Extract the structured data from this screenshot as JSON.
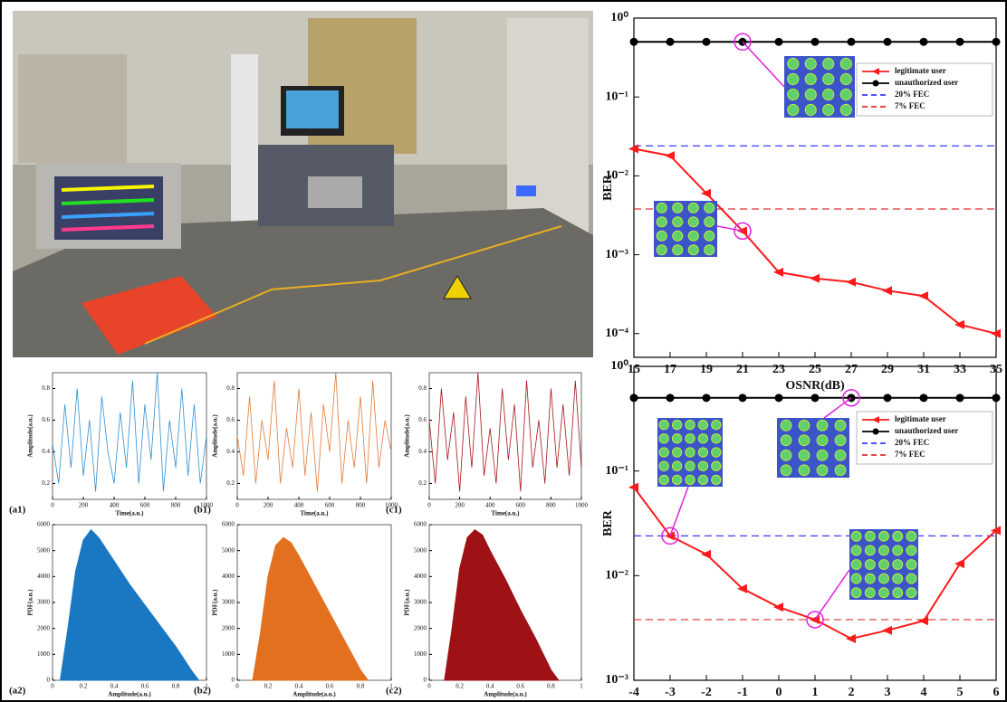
{
  "chart_data": [
    {
      "type": "line",
      "log_scale": true,
      "x_label": "OSNR(dB)",
      "y_label": "BER",
      "legend": "upper right",
      "x": [
        15,
        17,
        19,
        21,
        23,
        25,
        27,
        29,
        31,
        33,
        35
      ],
      "xlim": [
        15,
        35
      ],
      "xticks": [
        15,
        17,
        19,
        21,
        23,
        25,
        27,
        29,
        31,
        33,
        35
      ],
      "ylim": [
        5e-05,
        1
      ],
      "yticks": [
        {
          "value": 1,
          "label": "10⁰"
        },
        {
          "value": 0.1,
          "label": "10⁻¹"
        },
        {
          "value": 0.01,
          "label": "10⁻²"
        },
        {
          "value": 0.001,
          "label": "10⁻³"
        },
        {
          "value": 0.0001,
          "label": "10⁻⁴"
        }
      ],
      "series": [
        {
          "name": "legitimate user",
          "color": "#ff1a1a",
          "marker": "triangle",
          "values": [
            0.022,
            0.018,
            0.006,
            0.002,
            0.0006,
            0.0005,
            0.00045,
            0.00035,
            0.0003,
            0.00013,
            0.0001
          ]
        },
        {
          "name": "unauthorized user",
          "color": "#000000",
          "marker": "circle",
          "values": [
            0.5,
            0.5,
            0.5,
            0.5,
            0.5,
            0.5,
            0.5,
            0.5,
            0.5,
            0.5,
            0.5
          ]
        }
      ],
      "hlines": [
        {
          "name": "20% FEC",
          "color": "#3a3aff",
          "value": 0.024
        },
        {
          "name": "7% FEC",
          "color": "#e03030",
          "value": 0.0038
        }
      ]
    },
    {
      "type": "line",
      "log_scale": true,
      "x_label": "Launching power(dBm)",
      "y_label": "BER",
      "legend": "upper right",
      "x": [
        -4,
        -3,
        -2,
        -1,
        0,
        1,
        2,
        3,
        4,
        5,
        6
      ],
      "xlim": [
        -4,
        6
      ],
      "xticks": [
        -4,
        -3,
        -2,
        -1,
        0,
        1,
        2,
        3,
        4,
        5,
        6
      ],
      "ylim": [
        0.001,
        1
      ],
      "yticks": [
        {
          "value": 1,
          "label": "10⁰"
        },
        {
          "value": 0.1,
          "label": "10⁻¹"
        },
        {
          "value": 0.01,
          "label": "10⁻²"
        },
        {
          "value": 0.001,
          "label": "10⁻³"
        }
      ],
      "series": [
        {
          "name": "legitimate user",
          "color": "#ff1a1a",
          "marker": "triangle",
          "values": [
            0.07,
            0.024,
            0.016,
            0.0075,
            0.005,
            0.0038,
            0.0025,
            0.003,
            0.0037,
            0.013,
            0.027
          ]
        },
        {
          "name": "unauthorized user",
          "color": "#000000",
          "marker": "circle",
          "values": [
            0.5,
            0.5,
            0.5,
            0.5,
            0.5,
            0.5,
            0.5,
            0.5,
            0.5,
            0.5,
            0.5
          ]
        }
      ],
      "hlines": [
        {
          "name": "20% FEC",
          "color": "#3a3aff",
          "value": 0.024
        },
        {
          "name": "7% FEC",
          "color": "#e03030",
          "value": 0.0038
        }
      ]
    },
    {
      "type": "line",
      "panel_label": "(a1)",
      "x_label": "Time(a.u.)",
      "y_label": "Amplitude(a.u.)",
      "x": [
        0,
        40,
        80,
        120,
        160,
        200,
        240,
        280,
        320,
        360,
        400,
        440,
        480,
        520,
        560,
        600,
        640,
        680,
        720,
        760,
        800,
        840,
        880,
        920,
        960,
        1000
      ],
      "xlim": [
        0,
        1000
      ],
      "xticks": [
        0,
        200,
        400,
        600,
        800,
        1000
      ],
      "ylim": [
        0.1,
        0.9
      ],
      "yticks": [
        0.2,
        0.4,
        0.6,
        0.8
      ],
      "series": [
        {
          "name": null,
          "color": "#2f8fcf",
          "values": [
            0.45,
            0.2,
            0.7,
            0.3,
            0.8,
            0.25,
            0.6,
            0.15,
            0.75,
            0.4,
            0.2,
            0.65,
            0.3,
            0.85,
            0.2,
            0.7,
            0.35,
            0.9,
            0.15,
            0.6,
            0.3,
            0.8,
            0.25,
            0.7,
            0.2,
            0.5
          ]
        }
      ]
    },
    {
      "type": "line",
      "panel_label": "(b1)",
      "x_label": "Time(a.u.)",
      "y_label": "Amplitude(a.u.)",
      "x": [
        0,
        40,
        80,
        120,
        160,
        200,
        240,
        280,
        320,
        360,
        400,
        440,
        480,
        520,
        560,
        600,
        640,
        680,
        720,
        760,
        800,
        840,
        880,
        920,
        960,
        1000
      ],
      "xlim": [
        0,
        1000
      ],
      "xticks": [
        0,
        200,
        400,
        600,
        800,
        1000
      ],
      "ylim": [
        0.1,
        0.9
      ],
      "yticks": [
        0.2,
        0.4,
        0.6,
        0.8
      ],
      "series": [
        {
          "name": null,
          "color": "#e07b3a",
          "values": [
            0.5,
            0.25,
            0.75,
            0.2,
            0.6,
            0.35,
            0.85,
            0.2,
            0.55,
            0.3,
            0.8,
            0.25,
            0.65,
            0.15,
            0.7,
            0.4,
            0.9,
            0.2,
            0.6,
            0.3,
            0.75,
            0.2,
            0.85,
            0.3,
            0.6,
            0.4
          ]
        }
      ]
    },
    {
      "type": "line",
      "panel_label": "(c1)",
      "x_label": "Time(a.u.)",
      "y_label": "Amplitude(a.u.)",
      "x": [
        0,
        40,
        80,
        120,
        160,
        200,
        240,
        280,
        320,
        360,
        400,
        440,
        480,
        520,
        560,
        600,
        640,
        680,
        720,
        760,
        800,
        840,
        880,
        920,
        960,
        1000
      ],
      "xlim": [
        0,
        1000
      ],
      "xticks": [
        0,
        200,
        400,
        600,
        800,
        1000
      ],
      "ylim": [
        0.1,
        0.9
      ],
      "yticks": [
        0.2,
        0.4,
        0.6,
        0.8
      ],
      "series": [
        {
          "name": null,
          "color": "#a4161a",
          "values": [
            0.6,
            0.2,
            0.8,
            0.35,
            0.65,
            0.15,
            0.75,
            0.3,
            0.9,
            0.25,
            0.55,
            0.2,
            0.8,
            0.35,
            0.7,
            0.15,
            0.85,
            0.3,
            0.6,
            0.2,
            0.8,
            0.3,
            0.7,
            0.25,
            0.85,
            0.3
          ]
        }
      ]
    },
    {
      "type": "area",
      "panel_label": "(a2)",
      "x_label": "Amplitude(a.u.)",
      "y_label": "PDF(a.u.)",
      "x": [
        0.05,
        0.1,
        0.15,
        0.2,
        0.25,
        0.3,
        0.4,
        0.5,
        0.6,
        0.7,
        0.8,
        0.9,
        0.95
      ],
      "xlim": [
        0,
        1
      ],
      "xticks": [
        0,
        0.2,
        0.4,
        0.6,
        0.8,
        1
      ],
      "ylim": [
        0,
        6000
      ],
      "yticks": [
        0,
        1000,
        2000,
        3000,
        4000,
        5000,
        6000
      ],
      "series": [
        {
          "name": null,
          "color": "#1a78c2",
          "values": [
            0,
            2000,
            4200,
            5400,
            5800,
            5500,
            4600,
            3700,
            2900,
            2100,
            1300,
            400,
            0
          ]
        }
      ]
    },
    {
      "type": "area",
      "panel_label": "(b2)",
      "x_label": "Amplitude(a.u.)",
      "y_label": "PDF(a.u.)",
      "x": [
        0.1,
        0.15,
        0.2,
        0.25,
        0.3,
        0.35,
        0.4,
        0.5,
        0.6,
        0.7,
        0.8,
        0.85
      ],
      "xlim": [
        0,
        1
      ],
      "xticks": [
        0,
        0.2,
        0.4,
        0.6,
        0.8,
        1
      ],
      "ylim": [
        0,
        6000
      ],
      "yticks": [
        0,
        1000,
        2000,
        3000,
        4000,
        5000,
        6000
      ],
      "series": [
        {
          "name": null,
          "color": "#e2701f",
          "values": [
            0,
            1800,
            4000,
            5200,
            5500,
            5300,
            4800,
            3700,
            2600,
            1500,
            400,
            0
          ]
        }
      ]
    },
    {
      "type": "area",
      "panel_label": "(c2)",
      "x_label": "Amplitude(a.u.)",
      "y_label": "PDF(a.u.)",
      "x": [
        0.1,
        0.15,
        0.2,
        0.25,
        0.3,
        0.35,
        0.4,
        0.5,
        0.6,
        0.7,
        0.8,
        0.85
      ],
      "xlim": [
        0,
        1
      ],
      "xticks": [
        0,
        0.2,
        0.4,
        0.6,
        0.8,
        1
      ],
      "ylim": [
        0,
        6000
      ],
      "yticks": [
        0,
        1000,
        2000,
        3000,
        4000,
        5000,
        6000
      ],
      "series": [
        {
          "name": null,
          "color": "#9e1216",
          "values": [
            0,
            2000,
            4300,
            5500,
            5800,
            5600,
            5000,
            3900,
            2700,
            1600,
            400,
            0
          ]
        }
      ]
    }
  ]
}
